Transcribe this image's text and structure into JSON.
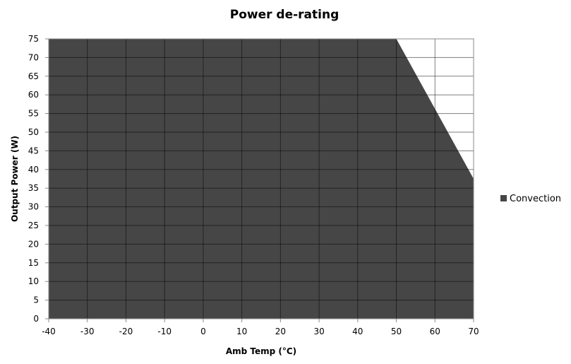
{
  "chart_data": {
    "type": "area",
    "title": "Power de-rating",
    "xlabel": "Amb Temp (°C)",
    "ylabel": "Output Power (W)",
    "xlim": [
      -40,
      70
    ],
    "ylim": [
      0,
      75
    ],
    "x_ticks": [
      -40,
      -30,
      -20,
      -10,
      0,
      10,
      20,
      30,
      40,
      50,
      60,
      70
    ],
    "y_ticks": [
      0,
      5,
      10,
      15,
      20,
      25,
      30,
      35,
      40,
      45,
      50,
      55,
      60,
      65,
      70,
      75
    ],
    "grid": true,
    "legend_position": "right",
    "series": [
      {
        "name": "Convection",
        "color": "#464646",
        "x": [
          -40,
          -30,
          -20,
          -10,
          0,
          10,
          20,
          30,
          40,
          50,
          60,
          70
        ],
        "y": [
          75,
          75,
          75,
          75,
          75,
          75,
          75,
          75,
          75,
          75,
          56.25,
          37.5
        ]
      }
    ]
  }
}
